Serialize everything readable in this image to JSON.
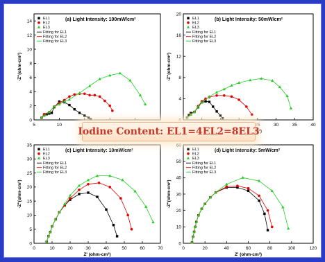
{
  "banner": {
    "text": "Iodine Content: EL1=4EL2=8EL3",
    "color": "#c0392b"
  },
  "legend_labels": {
    "points": [
      "EL1",
      "EL2",
      "EL3"
    ],
    "fits": [
      "Fitting for EL1",
      "Fitting for EL2",
      "Fitting for EL3"
    ]
  },
  "colors": {
    "EL1": "#000000",
    "EL2": "#e00000",
    "EL3": "#22cc22"
  },
  "chart_data": [
    {
      "type": "scatter",
      "title": "(a) Light Intensity: 100mW/cm²",
      "xlabel": "Z' (ohm-cm²)",
      "ylabel": "-Z''(ohm-cm²)",
      "xlim": [
        5,
        30
      ],
      "ylim": [
        0,
        15
      ],
      "xticks": [
        5,
        10,
        15,
        20,
        25,
        30
      ],
      "yticks": [
        0,
        2,
        4,
        6,
        8,
        10,
        12,
        14
      ],
      "legend_position": "top-left",
      "series": [
        {
          "name": "EL1",
          "x": [
            6.5,
            7,
            7.5,
            8,
            8.5,
            9,
            10,
            11,
            12,
            13,
            14,
            15,
            15.8,
            16.2
          ],
          "y": [
            0.3,
            0.7,
            0.8,
            0.9,
            1.0,
            1.8,
            2.6,
            2.5,
            2.1,
            1.5,
            1.0,
            0.6,
            0.3,
            0.1
          ]
        },
        {
          "name": "EL2",
          "x": [
            6.5,
            7,
            8,
            9,
            10,
            11,
            12,
            13,
            14,
            15,
            16,
            17,
            18,
            19,
            20,
            20.5
          ],
          "y": [
            0.3,
            0.8,
            1.1,
            1.9,
            2.4,
            2.8,
            3.3,
            3.6,
            3.7,
            3.7,
            3.5,
            3.5,
            3.3,
            2.7,
            2.0,
            1.3
          ]
        },
        {
          "name": "EL3",
          "x": [
            6.5,
            7,
            8,
            9,
            10,
            11,
            12,
            14,
            16,
            18,
            20,
            22,
            24,
            26,
            27
          ],
          "y": [
            0.3,
            0.6,
            1.1,
            1.9,
            2.2,
            2.6,
            2.9,
            3.8,
            4.8,
            5.8,
            6.3,
            6.6,
            5.6,
            3.5,
            2.2
          ]
        }
      ]
    },
    {
      "type": "scatter",
      "title": "(b) Light Intensity: 50mW/cm²",
      "xlabel": "Z' (ohm-cm²)",
      "ylabel": "-Z''(ohm-cm²)",
      "xlim": [
        5,
        40
      ],
      "ylim": [
        0,
        20
      ],
      "xticks": [
        5,
        10,
        15,
        20,
        25,
        30,
        35,
        40
      ],
      "yticks": [
        0,
        4,
        8,
        12,
        16,
        20
      ],
      "legend_position": "top-left",
      "series": [
        {
          "name": "EL1",
          "x": [
            6,
            6.5,
            7,
            8,
            9,
            10,
            11,
            12,
            13,
            14,
            15,
            15.6
          ],
          "y": [
            0.4,
            0.9,
            1.3,
            1.5,
            2.4,
            3.3,
            3.5,
            3.4,
            2.5,
            1.6,
            0.8,
            0.3
          ]
        },
        {
          "name": "EL2",
          "x": [
            6,
            7,
            8,
            9,
            10,
            11,
            12,
            14,
            16,
            18,
            20,
            22,
            23.5
          ],
          "y": [
            0.4,
            1.1,
            1.5,
            2.6,
            3.5,
            4.0,
            4.3,
            4.6,
            4.6,
            4.4,
            3.8,
            2.5,
            1.0
          ]
        },
        {
          "name": "EL3",
          "x": [
            6,
            7,
            8,
            9,
            10,
            12,
            14,
            16,
            18,
            20,
            23,
            26,
            29,
            31,
            33,
            34
          ],
          "y": [
            0.4,
            1.0,
            1.5,
            2.5,
            3.3,
            4.4,
            5.2,
            5.8,
            6.5,
            7.0,
            7.5,
            7.8,
            7.4,
            6.2,
            4.5,
            2.2
          ]
        }
      ]
    },
    {
      "type": "scatter",
      "title": "(c) Light Intensity: 10mW/cm²",
      "xlabel": "Z' (ohm-cm²)",
      "ylabel": "-Z''(ohm-cm²)",
      "xlim": [
        0,
        70
      ],
      "ylim": [
        0,
        35
      ],
      "xticks": [
        0,
        10,
        20,
        30,
        40,
        50,
        60,
        70
      ],
      "yticks": [
        0,
        5,
        10,
        15,
        20,
        25,
        30,
        35
      ],
      "legend_position": "top-left",
      "series": [
        {
          "name": "EL1",
          "x": [
            7,
            8,
            9,
            10,
            12,
            14,
            17,
            20,
            25,
            30,
            35,
            40,
            44,
            46
          ],
          "y": [
            0.5,
            2.5,
            4,
            6,
            8.5,
            11,
            13.5,
            15.5,
            17.5,
            18,
            16.5,
            12,
            6.5,
            2.5
          ]
        },
        {
          "name": "EL2",
          "x": [
            7,
            8,
            9,
            10,
            12,
            14,
            17,
            20,
            25,
            30,
            36,
            42,
            48,
            52,
            54
          ],
          "y": [
            0.5,
            2.5,
            4,
            6,
            8.5,
            11,
            13.5,
            16,
            19,
            21,
            21.5,
            20,
            16,
            10,
            5
          ]
        },
        {
          "name": "EL3",
          "x": [
            7,
            8,
            9,
            10,
            12,
            14,
            17,
            20,
            25,
            30,
            35,
            42,
            49,
            56,
            62,
            66
          ],
          "y": [
            0.5,
            2.5,
            4,
            6,
            8.5,
            11,
            14,
            17,
            20.5,
            22.5,
            24,
            24,
            22.5,
            18.5,
            13,
            7.5
          ]
        }
      ]
    },
    {
      "type": "scatter",
      "title": "(d) Light Intensity: 5mW/cm²",
      "xlabel": "Z' (ohm-cm²)",
      "ylabel": "-Z''(ohm-cm²)",
      "xlim": [
        0,
        120
      ],
      "ylim": [
        0,
        60
      ],
      "xticks": [
        0,
        20,
        40,
        60,
        80,
        100,
        120
      ],
      "yticks": [
        0,
        10,
        20,
        30,
        40,
        50,
        60
      ],
      "legend_position": "top-left",
      "series": [
        {
          "name": "EL1",
          "x": [
            8,
            9,
            10,
            11,
            12,
            14,
            17,
            20,
            25,
            30,
            40,
            50,
            60,
            70,
            75,
            78
          ],
          "y": [
            0.5,
            4,
            7,
            10,
            13,
            17,
            21,
            24,
            28,
            31,
            34,
            34,
            32,
            26,
            18,
            8
          ]
        },
        {
          "name": "EL2",
          "x": [
            8,
            9,
            10,
            11,
            12,
            14,
            17,
            20,
            25,
            30,
            40,
            50,
            60,
            70,
            78,
            82
          ],
          "y": [
            0.5,
            4,
            7,
            10,
            13,
            17,
            21,
            24,
            28,
            31,
            34.5,
            35,
            33.5,
            29,
            20,
            10
          ]
        },
        {
          "name": "EL3",
          "x": [
            8,
            9,
            10,
            11,
            12,
            14,
            17,
            20,
            25,
            30,
            40,
            55,
            70,
            82,
            92,
            97
          ],
          "y": [
            0.5,
            4,
            7,
            10,
            13,
            17,
            21,
            24,
            28,
            31,
            36,
            40,
            38,
            32,
            22,
            9
          ]
        }
      ]
    }
  ]
}
